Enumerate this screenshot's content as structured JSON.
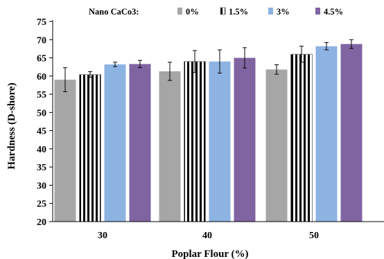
{
  "chart_data": {
    "type": "bar",
    "xlabel": "Poplar Flour (%)",
    "ylabel": "Hardness (D-shore)",
    "ylim": [
      20,
      75
    ],
    "yticks": [
      20,
      25,
      30,
      35,
      40,
      45,
      50,
      55,
      60,
      65,
      70,
      75
    ],
    "categories": [
      "30",
      "40",
      "50"
    ],
    "legend_title": "Nano CaCo3:",
    "legend_position": "top",
    "grid": false,
    "series": [
      {
        "name": "0%",
        "color": "#a6a6a6",
        "pattern": "solid",
        "values": [
          59.0,
          61.3,
          61.8
        ],
        "errors": [
          3.3,
          2.5,
          1.3
        ]
      },
      {
        "name": "1.5%",
        "color": "#808080",
        "pattern": "striped",
        "values": [
          60.4,
          64.0,
          66.0
        ],
        "errors": [
          0.8,
          3.0,
          2.2
        ]
      },
      {
        "name": "3%",
        "color": "#8db3e2",
        "pattern": "solid",
        "values": [
          63.2,
          64.0,
          68.2
        ],
        "errors": [
          0.6,
          3.2,
          1.0
        ]
      },
      {
        "name": "4.5%",
        "color": "#8064a2",
        "pattern": "solid",
        "values": [
          63.3,
          65.0,
          68.8
        ],
        "errors": [
          1.0,
          2.8,
          1.2
        ]
      }
    ]
  }
}
